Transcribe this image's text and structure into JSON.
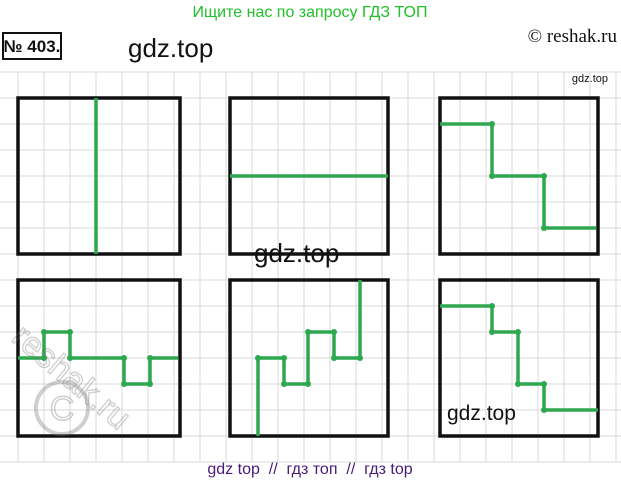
{
  "banner": "Ищите нас по запросу ГДЗ ТОП",
  "problem_number": "№ 403.",
  "copyright": "© reshak.ru",
  "watermarks": [
    "gdz.top",
    "gdz.top",
    "gdz.top",
    "gdz.top",
    "reshak.ru"
  ],
  "footer": "gdz top  //  гдз топ  //  гдз top"
}
